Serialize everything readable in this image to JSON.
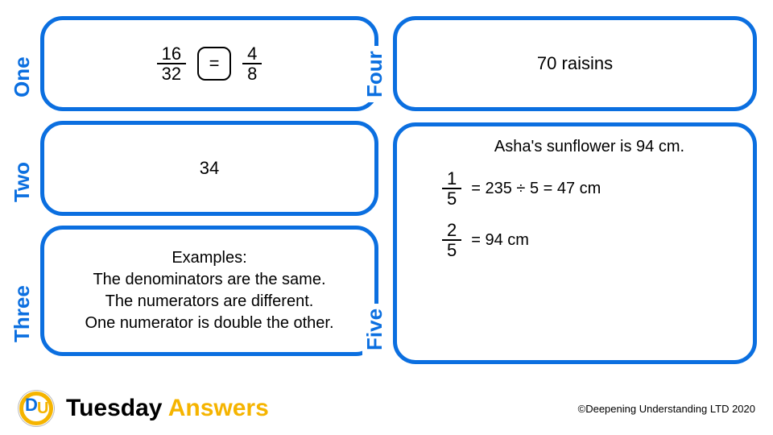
{
  "colors": {
    "box_border": "#0b6fe0",
    "label_text": "#0b6fe0",
    "accent": "#f5b400"
  },
  "boxes": {
    "one": {
      "label": "One",
      "frac1_num": "16",
      "frac1_den": "32",
      "equals": "=",
      "frac2_num": "4",
      "frac2_den": "8"
    },
    "two": {
      "label": "Two",
      "value": "34"
    },
    "three": {
      "label": "Three",
      "heading": "Examples:",
      "line1": "The denominators are the same.",
      "line2": "The numerators are different.",
      "line3": "One numerator is double the other."
    },
    "four": {
      "label": "Four",
      "text": "70 raisins"
    },
    "five": {
      "label": "Five",
      "line1": "Asha's sunflower is 94 cm.",
      "calc1_num": "1",
      "calc1_den": "5",
      "calc1_text": "= 235 ÷ 5 = 47 cm",
      "calc2_num": "2",
      "calc2_den": "5",
      "calc2_text": "= 94 cm"
    }
  },
  "footer": {
    "title_day": "Tuesday",
    "title_word": "Answers",
    "copyright": "©Deepening Understanding LTD 2020"
  }
}
